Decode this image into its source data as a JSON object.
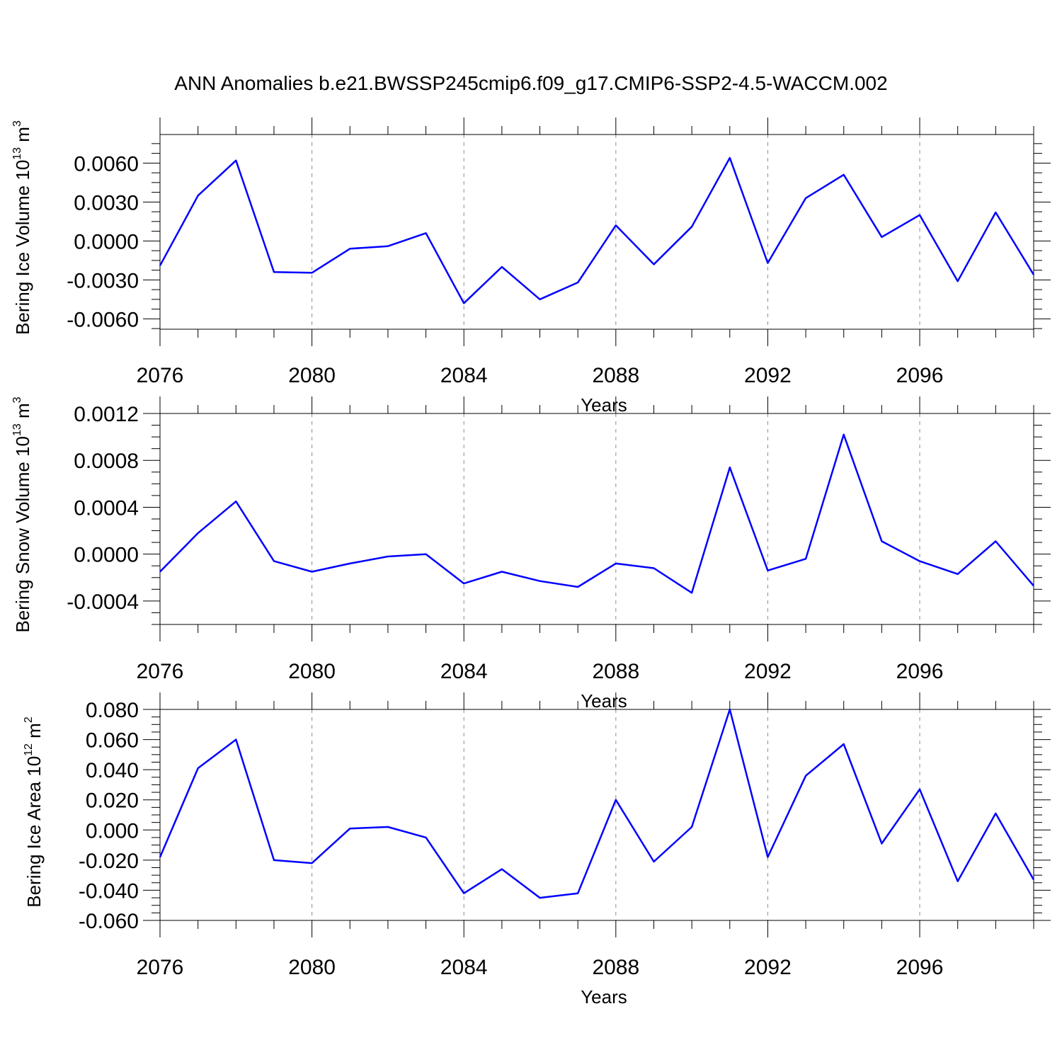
{
  "colors": {
    "series": "#0000ff",
    "grid": "#8a8a8a"
  },
  "chart_data": [
    {
      "type": "line",
      "title": "ANN Anomalies b.e21.BWSSP245cmip6.f09_g17.CMIP6-SSP2-4.5-WACCM.002",
      "ylabel": "Bering Ice Volume 10",
      "ylabel_exp": "13",
      "ylabel_unit": "m",
      "ylabel_unit_exp": "3",
      "xlabel": "Years",
      "xlim": [
        2076,
        2099
      ],
      "ylim": [
        -0.0068,
        0.0082
      ],
      "yticks": [
        -0.006,
        -0.003,
        0.0,
        0.003,
        0.006
      ],
      "yticks_labels": [
        "-0.0060",
        "-0.0030",
        "0.0000",
        "0.0030",
        "0.0060"
      ],
      "yminor_step": 0.00075,
      "xticks": [
        2076,
        2080,
        2084,
        2088,
        2092,
        2096
      ],
      "xticks_labels": [
        "2076",
        "2080",
        "2084",
        "2088",
        "2092",
        "2096"
      ],
      "x": [
        2076,
        2077,
        2078,
        2079,
        2080,
        2081,
        2082,
        2083,
        2084,
        2085,
        2086,
        2087,
        2088,
        2089,
        2090,
        2091,
        2092,
        2093,
        2094,
        2095,
        2096,
        2097,
        2098,
        2099
      ],
      "values": [
        -0.0019,
        0.0035,
        0.0062,
        -0.0024,
        -0.00245,
        -0.0006,
        -0.0004,
        0.0006,
        -0.0048,
        -0.002,
        -0.0045,
        -0.0032,
        0.0012,
        -0.0018,
        0.0011,
        0.0064,
        -0.0017,
        0.0033,
        0.0051,
        0.0003,
        0.002,
        -0.0031,
        0.0022,
        -0.0026
      ]
    },
    {
      "type": "line",
      "title": "",
      "ylabel": "Bering Snow Volume 10",
      "ylabel_exp": "13",
      "ylabel_unit": "m",
      "ylabel_unit_exp": "3",
      "xlabel": "Years",
      "xlim": [
        2076,
        2099
      ],
      "ylim": [
        -0.0006,
        0.0012
      ],
      "yticks": [
        -0.0004,
        0.0,
        0.0004,
        0.0008,
        0.0012
      ],
      "yticks_labels": [
        "-0.0004",
        "0.0000",
        "0.0004",
        "0.0008",
        "0.0012"
      ],
      "yminor_step": 0.0001,
      "xticks": [
        2076,
        2080,
        2084,
        2088,
        2092,
        2096
      ],
      "xticks_labels": [
        "2076",
        "2080",
        "2084",
        "2088",
        "2092",
        "2096"
      ],
      "x": [
        2076,
        2077,
        2078,
        2079,
        2080,
        2081,
        2082,
        2083,
        2084,
        2085,
        2086,
        2087,
        2088,
        2089,
        2090,
        2091,
        2092,
        2093,
        2094,
        2095,
        2096,
        2097,
        2098,
        2099
      ],
      "values": [
        -0.00015,
        0.00018,
        0.00045,
        -6e-05,
        -0.00015,
        -8e-05,
        -2e-05,
        0.0,
        -0.00025,
        -0.00015,
        -0.00023,
        -0.00028,
        -8e-05,
        -0.00012,
        -0.00033,
        0.00074,
        -0.00014,
        -4e-05,
        0.00102,
        0.00011,
        -6e-05,
        -0.00017,
        0.00011,
        -0.00027
      ]
    },
    {
      "type": "line",
      "title": "",
      "ylabel": "Bering Ice Area 10",
      "ylabel_exp": "12",
      "ylabel_unit": "m",
      "ylabel_unit_exp": "2",
      "xlabel": "Years",
      "xlim": [
        2076,
        2099
      ],
      "ylim": [
        -0.06,
        0.08
      ],
      "yticks": [
        -0.06,
        -0.04,
        -0.02,
        0.0,
        0.02,
        0.04,
        0.06,
        0.08
      ],
      "yticks_labels": [
        "-0.060",
        "-0.040",
        "-0.020",
        "0.000",
        "0.020",
        "0.040",
        "0.060",
        "0.080"
      ],
      "yminor_step": 0.005,
      "xticks": [
        2076,
        2080,
        2084,
        2088,
        2092,
        2096
      ],
      "xticks_labels": [
        "2076",
        "2080",
        "2084",
        "2088",
        "2092",
        "2096"
      ],
      "x": [
        2076,
        2077,
        2078,
        2079,
        2080,
        2081,
        2082,
        2083,
        2084,
        2085,
        2086,
        2087,
        2088,
        2089,
        2090,
        2091,
        2092,
        2093,
        2094,
        2095,
        2096,
        2097,
        2098,
        2099
      ],
      "values": [
        -0.018,
        0.041,
        0.06,
        -0.02,
        -0.022,
        0.001,
        0.002,
        -0.005,
        -0.042,
        -0.026,
        -0.045,
        -0.042,
        0.02,
        -0.021,
        0.002,
        0.08,
        -0.018,
        0.036,
        0.057,
        -0.009,
        0.027,
        -0.034,
        0.011,
        -0.033
      ]
    }
  ]
}
